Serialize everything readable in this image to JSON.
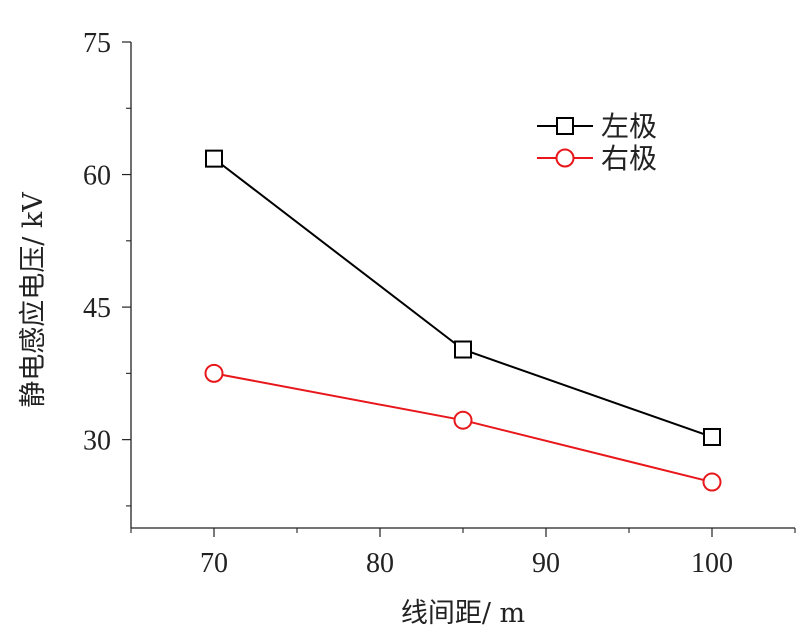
{
  "chart_data": {
    "type": "line",
    "title": "",
    "xlabel": "线间距/ m",
    "ylabel": "静电感应电压/ kV",
    "xlim": [
      65,
      105
    ],
    "ylim": [
      20,
      75
    ],
    "x_ticks": [
      70,
      80,
      90,
      100
    ],
    "x_tick_labels": [
      "70",
      "80",
      "90",
      "100"
    ],
    "y_ticks": [
      30,
      45,
      60,
      75
    ],
    "y_tick_labels": [
      "30",
      "45",
      "60",
      "75"
    ],
    "grid": false,
    "legend_position": "top-right",
    "series": [
      {
        "name": "左极",
        "color": "#000000",
        "marker": "square",
        "x": [
          70,
          85,
          100
        ],
        "y": [
          61.8,
          40.2,
          30.3
        ]
      },
      {
        "name": "右极",
        "color": "#e8171b",
        "marker": "circle",
        "x": [
          70,
          85,
          100
        ],
        "y": [
          37.5,
          32.2,
          25.2
        ]
      }
    ]
  }
}
